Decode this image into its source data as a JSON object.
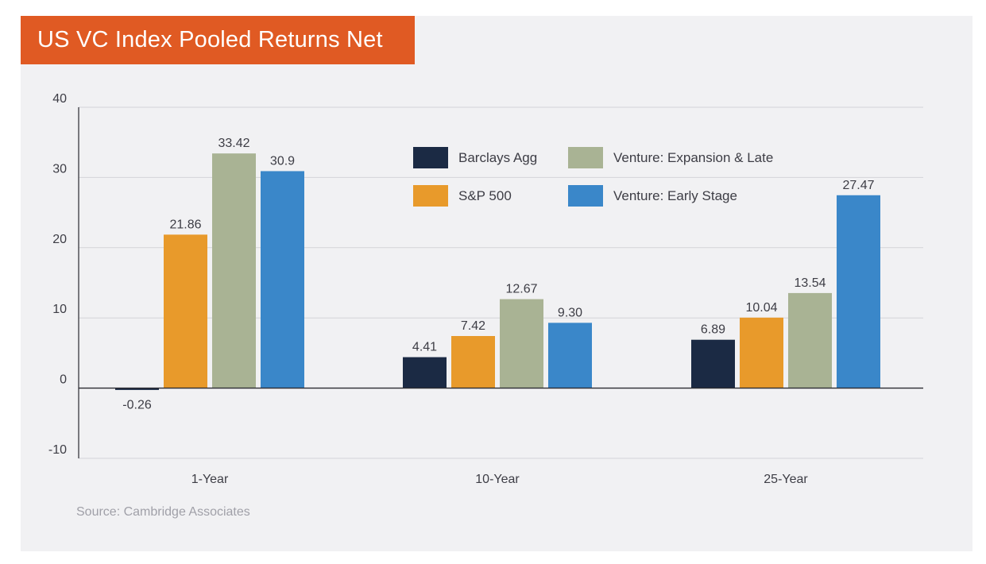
{
  "chart_data": {
    "type": "bar",
    "title": "US VC Index Pooled Returns Net",
    "xlabel": "",
    "ylabel": "",
    "ylim": [
      -10,
      40
    ],
    "yticks": [
      40,
      30,
      20,
      10,
      0,
      -10
    ],
    "grid": true,
    "legend_position": "top-center",
    "categories": [
      "1-Year",
      "10-Year",
      "25-Year"
    ],
    "series": [
      {
        "name": "Barclays Agg",
        "color": "#1b2a44",
        "values": [
          -0.26,
          4.41,
          6.89
        ],
        "labels": [
          "-0.26",
          "4.41",
          "6.89"
        ]
      },
      {
        "name": "S&P 500",
        "color": "#e89a2b",
        "values": [
          21.86,
          7.42,
          10.04
        ],
        "labels": [
          "21.86",
          "7.42",
          "10.04"
        ]
      },
      {
        "name": "Venture: Expansion & Late",
        "color": "#a9b394",
        "values": [
          33.42,
          12.67,
          13.54
        ],
        "labels": [
          "33.42",
          "12.67",
          "13.54"
        ]
      },
      {
        "name": "Venture: Early Stage",
        "color": "#3a87c9",
        "values": [
          30.9,
          9.3,
          27.47
        ],
        "labels": [
          "30.9",
          "9.30",
          "27.47"
        ]
      }
    ],
    "source": "Source: Cambridge Associates"
  }
}
